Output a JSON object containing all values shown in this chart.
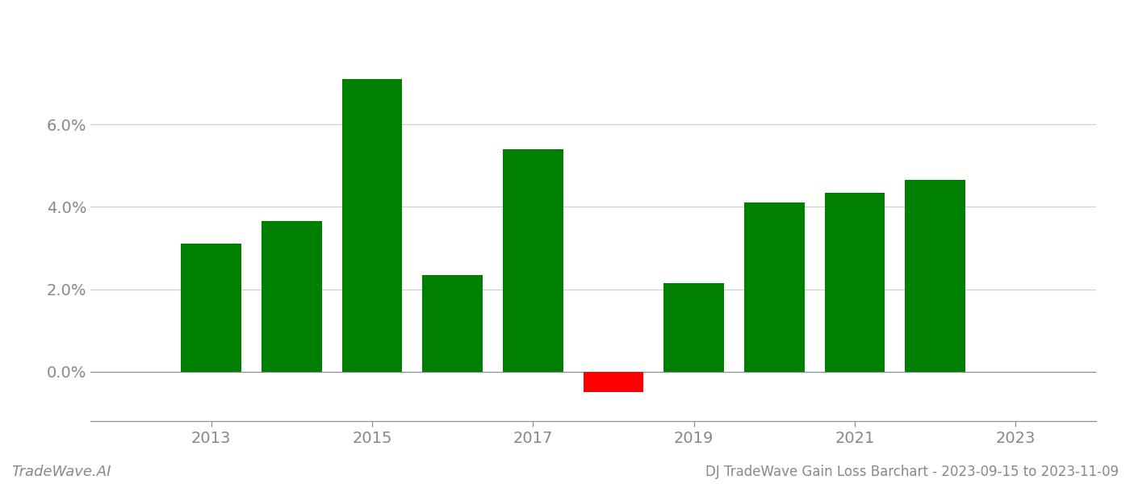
{
  "years": [
    2013,
    2014,
    2015,
    2016,
    2017,
    2018,
    2019,
    2020,
    2021,
    2022
  ],
  "values": [
    0.031,
    0.0365,
    0.071,
    0.0235,
    0.054,
    -0.005,
    0.0215,
    0.041,
    0.0435,
    0.0465
  ],
  "bar_colors": [
    "#008000",
    "#008000",
    "#008000",
    "#008000",
    "#008000",
    "#ff0000",
    "#008000",
    "#008000",
    "#008000",
    "#008000"
  ],
  "title": "DJ TradeWave Gain Loss Barchart - 2023-09-15 to 2023-11-09",
  "watermark": "TradeWave.AI",
  "xlim": [
    2011.5,
    2024.0
  ],
  "ylim": [
    -0.012,
    0.082
  ],
  "yticks": [
    0.0,
    0.02,
    0.04,
    0.06
  ],
  "ytick_labels": [
    "0.0%",
    "2.0%",
    "4.0%",
    "6.0%"
  ],
  "xtick_labels": [
    "2013",
    "2015",
    "2017",
    "2019",
    "2021",
    "2023"
  ],
  "xtick_positions": [
    2013,
    2015,
    2017,
    2019,
    2021,
    2023
  ],
  "background_color": "#ffffff",
  "grid_color": "#cccccc",
  "bar_width": 0.75,
  "title_fontsize": 12,
  "watermark_fontsize": 13,
  "tick_fontsize": 14,
  "tick_color": "#888888"
}
